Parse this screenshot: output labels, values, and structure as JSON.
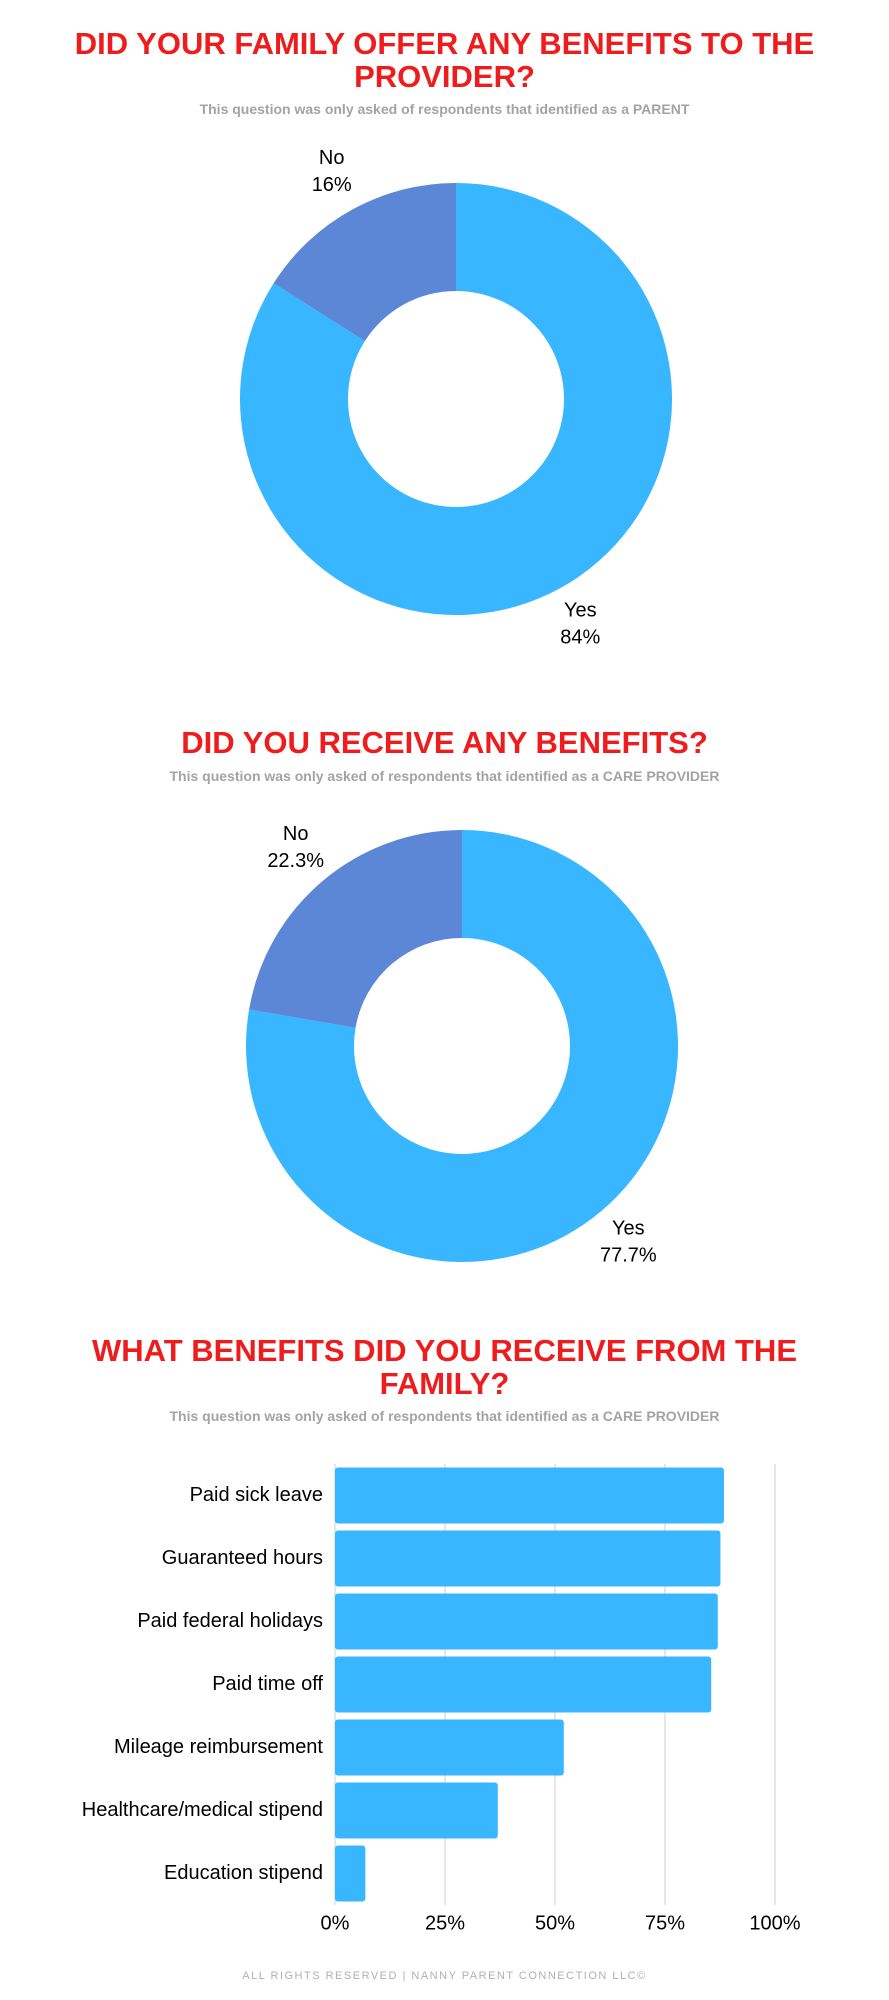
{
  "chart_data": [
    {
      "type": "pie",
      "title": "DID YOUR FAMILY OFFER ANY BENEFITS TO THE PROVIDER?",
      "subtitle": "This question was only asked of respondents that identified as a PARENT",
      "categories": [
        "Yes",
        "No"
      ],
      "values": [
        84,
        16
      ],
      "value_labels": [
        "84%",
        "16%"
      ],
      "colors": [
        "#38b6ff",
        "#5b87d6"
      ],
      "donut": true
    },
    {
      "type": "pie",
      "title": "DID YOU RECEIVE ANY BENEFITS?",
      "subtitle": "This question was only asked of respondents that identified as a CARE PROVIDER",
      "categories": [
        "Yes",
        "No"
      ],
      "values": [
        77.7,
        22.3
      ],
      "value_labels": [
        "77.7%",
        "22.3%"
      ],
      "colors": [
        "#38b6ff",
        "#5b87d6"
      ],
      "donut": true
    },
    {
      "type": "bar",
      "orientation": "horizontal",
      "title": "WHAT BENEFITS DID YOU RECEIVE FROM THE FAMILY?",
      "subtitle": "This question was only asked of respondents that identified as a CARE PROVIDER",
      "categories": [
        "Paid sick leave",
        "Guaranteed hours",
        "Paid federal holidays",
        "Paid time off",
        "Mileage reimbursement",
        "Healthcare/medical stipend",
        "Education stipend"
      ],
      "values": [
        88.4,
        87.6,
        87,
        85.5,
        52,
        37,
        6.9
      ],
      "color": "#38b6ff",
      "xlim": [
        0,
        100
      ],
      "xticks": [
        {
          "value": 0,
          "label": "0%"
        },
        {
          "value": 25,
          "label": "25%"
        },
        {
          "value": 50,
          "label": "50%"
        },
        {
          "value": 75,
          "label": "75%"
        },
        {
          "value": 100,
          "label": "100%"
        }
      ],
      "grid": true
    }
  ],
  "footer": "ALL RIGHTS RESERVED | NANNY PARENT CONNECTION LLC©"
}
